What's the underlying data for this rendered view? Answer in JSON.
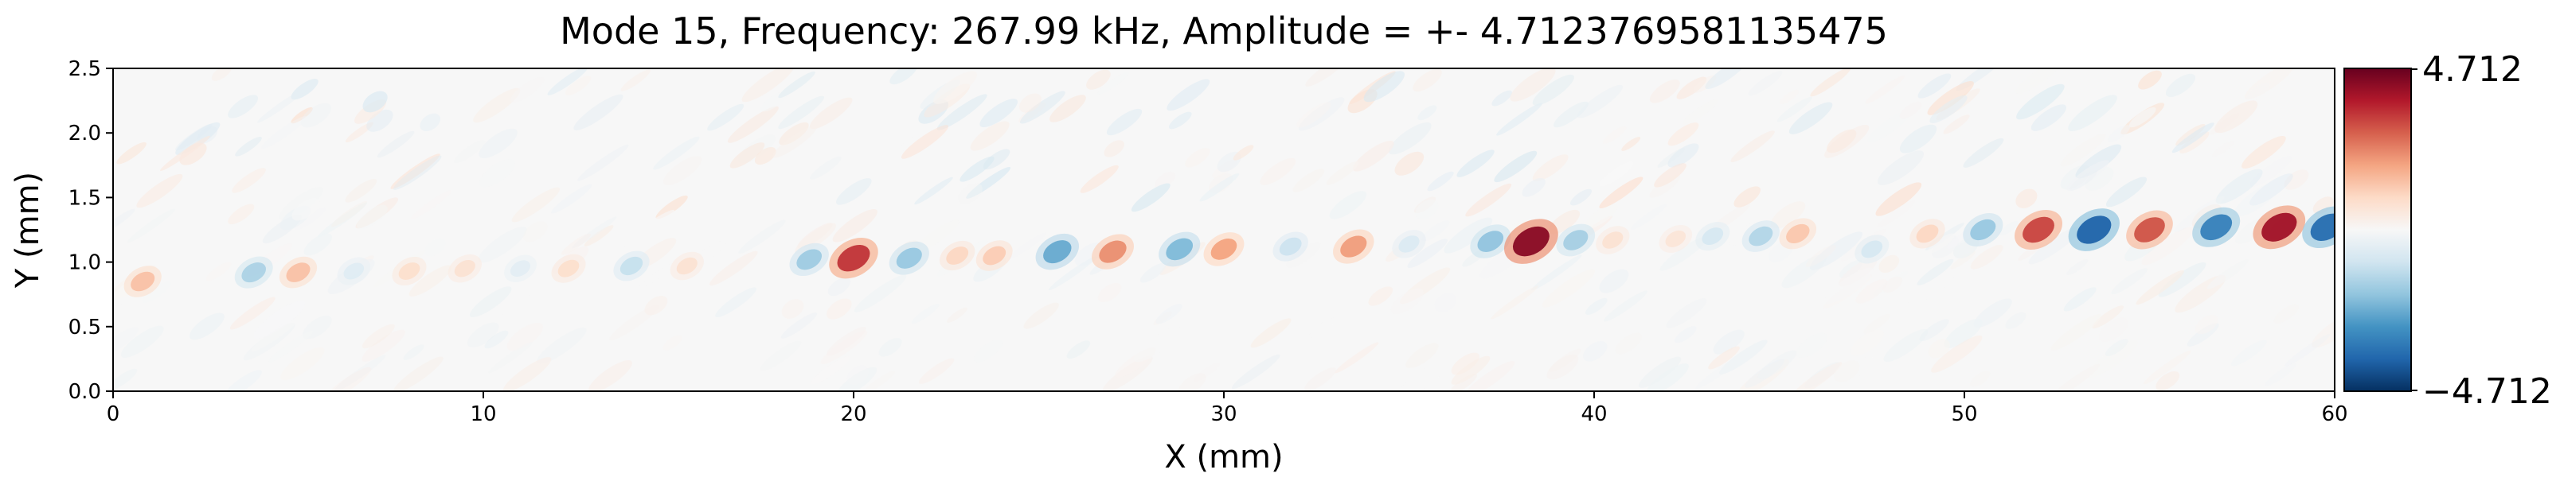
{
  "chart_data": {
    "type": "heatmap",
    "title": "Mode 15, Frequency: 267.99 kHz, Amplitude = +- 4.7123769581135475",
    "xlabel": "X (mm)",
    "ylabel": "Y (mm)",
    "xlim": [
      0,
      60
    ],
    "ylim": [
      0,
      2.5
    ],
    "x_ticks": [
      0,
      10,
      20,
      30,
      40,
      50,
      60
    ],
    "x_tick_labels": [
      "0",
      "10",
      "20",
      "30",
      "40",
      "50",
      "60"
    ],
    "y_ticks": [
      0.0,
      0.5,
      1.0,
      1.5,
      2.0,
      2.5
    ],
    "y_tick_labels": [
      "0.0",
      "0.5",
      "1.0",
      "1.5",
      "2.0",
      "2.5"
    ],
    "colorbar": {
      "colormap": "RdBu_r",
      "vmin": -4.712,
      "vmax": 4.712,
      "max_label": "4.712",
      "min_label": "−4.712"
    },
    "band_center_y": [
      [
        0,
        0.85
      ],
      [
        4,
        0.92
      ],
      [
        10,
        0.95
      ],
      [
        20,
        1.05
      ],
      [
        30,
        1.1
      ],
      [
        40,
        1.2
      ],
      [
        50,
        1.25
      ],
      [
        60,
        1.3
      ]
    ],
    "lobes": [
      {
        "x": 0.8,
        "y": 0.85,
        "value": 1.4
      },
      {
        "x": 3.8,
        "y": 0.92,
        "value": -1.5
      },
      {
        "x": 5.0,
        "y": 0.92,
        "value": 1.4
      },
      {
        "x": 6.5,
        "y": 0.93,
        "value": -0.6
      },
      {
        "x": 8.0,
        "y": 0.93,
        "value": 0.8
      },
      {
        "x": 9.5,
        "y": 0.95,
        "value": 0.7
      },
      {
        "x": 11.0,
        "y": 0.95,
        "value": -0.5
      },
      {
        "x": 12.3,
        "y": 0.95,
        "value": 0.8
      },
      {
        "x": 14.0,
        "y": 0.97,
        "value": -1.1
      },
      {
        "x": 15.5,
        "y": 0.97,
        "value": 0.7
      },
      {
        "x": 18.8,
        "y": 1.02,
        "value": -1.7
      },
      {
        "x": 20.0,
        "y": 1.03,
        "value": 3.4
      },
      {
        "x": 21.5,
        "y": 1.03,
        "value": -1.8
      },
      {
        "x": 22.8,
        "y": 1.05,
        "value": 1.0
      },
      {
        "x": 23.8,
        "y": 1.05,
        "value": 1.2
      },
      {
        "x": 25.5,
        "y": 1.08,
        "value": -2.4
      },
      {
        "x": 27.0,
        "y": 1.08,
        "value": 2.2
      },
      {
        "x": 28.8,
        "y": 1.1,
        "value": -2.1
      },
      {
        "x": 30.0,
        "y": 1.1,
        "value": 1.9
      },
      {
        "x": 31.8,
        "y": 1.12,
        "value": -1.0
      },
      {
        "x": 33.5,
        "y": 1.12,
        "value": 2.0
      },
      {
        "x": 35.0,
        "y": 1.14,
        "value": -0.7
      },
      {
        "x": 37.2,
        "y": 1.16,
        "value": -1.9
      },
      {
        "x": 38.3,
        "y": 1.16,
        "value": 4.3
      },
      {
        "x": 39.5,
        "y": 1.17,
        "value": -1.6
      },
      {
        "x": 40.5,
        "y": 1.17,
        "value": 0.7
      },
      {
        "x": 42.2,
        "y": 1.18,
        "value": 0.6
      },
      {
        "x": 43.2,
        "y": 1.2,
        "value": -0.8
      },
      {
        "x": 44.5,
        "y": 1.2,
        "value": -1.4
      },
      {
        "x": 45.5,
        "y": 1.22,
        "value": 1.3
      },
      {
        "x": 47.5,
        "y": 1.1,
        "value": -0.8
      },
      {
        "x": 49.0,
        "y": 1.22,
        "value": 1.0
      },
      {
        "x": 50.5,
        "y": 1.25,
        "value": -1.8
      },
      {
        "x": 52.0,
        "y": 1.25,
        "value": 3.2
      },
      {
        "x": 53.5,
        "y": 1.25,
        "value": -3.8
      },
      {
        "x": 55.0,
        "y": 1.25,
        "value": 3.0
      },
      {
        "x": 56.8,
        "y": 1.27,
        "value": -3.2
      },
      {
        "x": 58.5,
        "y": 1.27,
        "value": 4.0
      },
      {
        "x": 59.8,
        "y": 1.27,
        "value": -3.6
      }
    ]
  }
}
